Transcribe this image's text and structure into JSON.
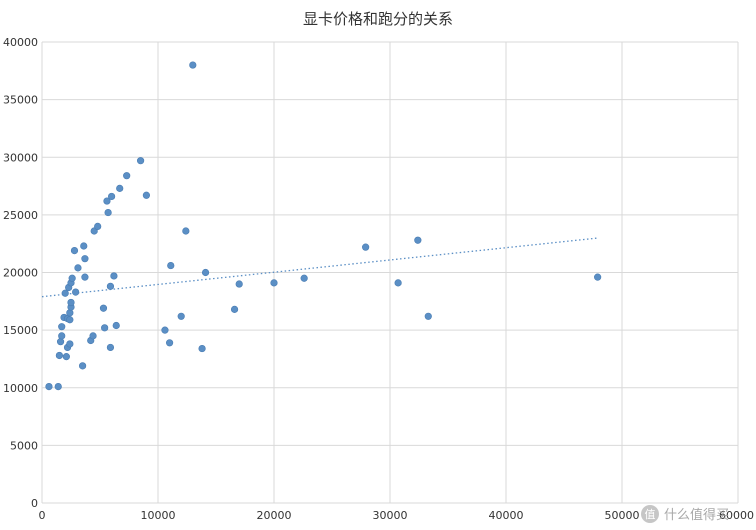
{
  "chart_data": {
    "type": "scatter",
    "title": "显卡价格和跑分的关系",
    "xlim": [
      0,
      60000
    ],
    "ylim": [
      0,
      40000
    ],
    "x_ticks": [
      0,
      10000,
      20000,
      30000,
      40000,
      50000,
      60000
    ],
    "y_ticks": [
      0,
      5000,
      10000,
      15000,
      20000,
      25000,
      30000,
      35000,
      40000
    ],
    "grid": true,
    "legend": "none",
    "colors": {
      "points": "#5b8fc5",
      "trendline": "#5b8fc5",
      "grid": "#d9d9d9"
    },
    "trendline": {
      "type": "linear",
      "x": [
        0,
        48000
      ],
      "y": [
        17900,
        23000
      ]
    },
    "points": [
      {
        "x": 600,
        "y": 10100
      },
      {
        "x": 1400,
        "y": 10100
      },
      {
        "x": 1500,
        "y": 12800
      },
      {
        "x": 2100,
        "y": 12700
      },
      {
        "x": 2200,
        "y": 13500
      },
      {
        "x": 2400,
        "y": 13800
      },
      {
        "x": 1600,
        "y": 14000
      },
      {
        "x": 1700,
        "y": 14500
      },
      {
        "x": 1700,
        "y": 15300
      },
      {
        "x": 1900,
        "y": 16100
      },
      {
        "x": 2200,
        "y": 16000
      },
      {
        "x": 2400,
        "y": 15900
      },
      {
        "x": 2400,
        "y": 16500
      },
      {
        "x": 2500,
        "y": 17000
      },
      {
        "x": 2500,
        "y": 17400
      },
      {
        "x": 2000,
        "y": 18200
      },
      {
        "x": 2300,
        "y": 18700
      },
      {
        "x": 2500,
        "y": 19100
      },
      {
        "x": 2600,
        "y": 19500
      },
      {
        "x": 2900,
        "y": 18300
      },
      {
        "x": 2800,
        "y": 21900
      },
      {
        "x": 3100,
        "y": 20400
      },
      {
        "x": 3500,
        "y": 11900
      },
      {
        "x": 3700,
        "y": 19600
      },
      {
        "x": 3700,
        "y": 21200
      },
      {
        "x": 3600,
        "y": 22300
      },
      {
        "x": 4200,
        "y": 14100
      },
      {
        "x": 4400,
        "y": 14500
      },
      {
        "x": 4500,
        "y": 23600
      },
      {
        "x": 4800,
        "y": 24000
      },
      {
        "x": 5300,
        "y": 16900
      },
      {
        "x": 5400,
        "y": 15200
      },
      {
        "x": 5700,
        "y": 25200
      },
      {
        "x": 5600,
        "y": 26200
      },
      {
        "x": 5900,
        "y": 18800
      },
      {
        "x": 5900,
        "y": 13500
      },
      {
        "x": 6000,
        "y": 26600
      },
      {
        "x": 6200,
        "y": 19700
      },
      {
        "x": 6400,
        "y": 15400
      },
      {
        "x": 6700,
        "y": 27300
      },
      {
        "x": 7300,
        "y": 28400
      },
      {
        "x": 8500,
        "y": 29700
      },
      {
        "x": 9000,
        "y": 26700
      },
      {
        "x": 10600,
        "y": 15000
      },
      {
        "x": 11000,
        "y": 13900
      },
      {
        "x": 11100,
        "y": 20600
      },
      {
        "x": 12000,
        "y": 16200
      },
      {
        "x": 12400,
        "y": 23600
      },
      {
        "x": 13000,
        "y": 38000
      },
      {
        "x": 13800,
        "y": 13400
      },
      {
        "x": 14100,
        "y": 20000
      },
      {
        "x": 16600,
        "y": 16800
      },
      {
        "x": 17000,
        "y": 19000
      },
      {
        "x": 20000,
        "y": 19100
      },
      {
        "x": 22600,
        "y": 19500
      },
      {
        "x": 27900,
        "y": 22200
      },
      {
        "x": 30700,
        "y": 19100
      },
      {
        "x": 32400,
        "y": 22800
      },
      {
        "x": 33300,
        "y": 16200
      },
      {
        "x": 47900,
        "y": 19600
      }
    ]
  },
  "watermark": {
    "text": "什么值得买"
  }
}
